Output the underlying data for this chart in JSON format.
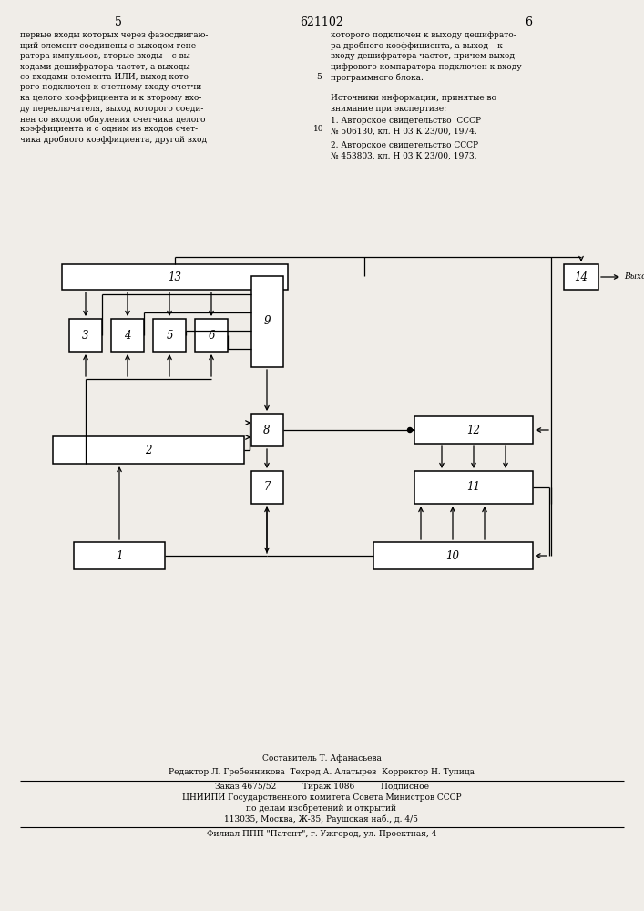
{
  "page_number_left": "5",
  "page_number_center": "621102",
  "page_number_right": "6",
  "text_left_lines": [
    "первые входы которых через фазосдвигаю-",
    "щий элемент соединены с выходом гене-",
    "ратора импульсов, вторые входы – с вы-",
    "ходами дешифратора частот, а выходы –",
    "со входами элемента ИЛИ, выход кото-",
    "рого подключен к счетному входу счетчи-",
    "ка целого коэффициента и к второму вхо-",
    "ду переключателя, выход которого соеди-",
    "нен со входом обнуления счетчика целого",
    "коэффициента и с одним из входов счет-",
    "чика дробного коэффициента, другой вход"
  ],
  "text_right_lines": [
    "которого подключен к выходу дешифрато-",
    "ра дробного коэффициента, а выход – к",
    "входу дешифратора частот, причем выход",
    "цифрового компаратора подключен к входу",
    "программного блока."
  ],
  "sources_header_lines": [
    "Источники информации, принятые во",
    "внимание при экспертизе:"
  ],
  "source1_lines": [
    "1. Авторское свидетельство  СССР",
    "№ 506130, кл. Н 03 К 23/00, 1974."
  ],
  "source2_lines": [
    "2. Авторское свидетельство СССР",
    "№ 453803, кл. Н 03 К 23/00, 1973."
  ],
  "line_number_5": "5",
  "line_number_10": "10",
  "vyhod_label": "Выход",
  "footer_line1": "Составитель Т. Афанасьева",
  "footer_line2": "Редактор Л. Гребенникова  Техред А. Алатырев  Корректор Н. Тупица",
  "footer_line3": "Заказ 4675/52          Тираж 1086          Подписное",
  "footer_line4": "ЦНИИПИ Государственного комитета Совета Министров СССР",
  "footer_line5": "по делам изобретений и открытий",
  "footer_line6": "113035, Москва, Ж-35, Раушская наб., д. 4/5",
  "footer_line7": "Филиал ППП \"Патент\", г. Ужгород, ул. Проектная, 4",
  "bg_color": "#f0ede8",
  "block_color": "#ffffff",
  "line_color": "#000000"
}
